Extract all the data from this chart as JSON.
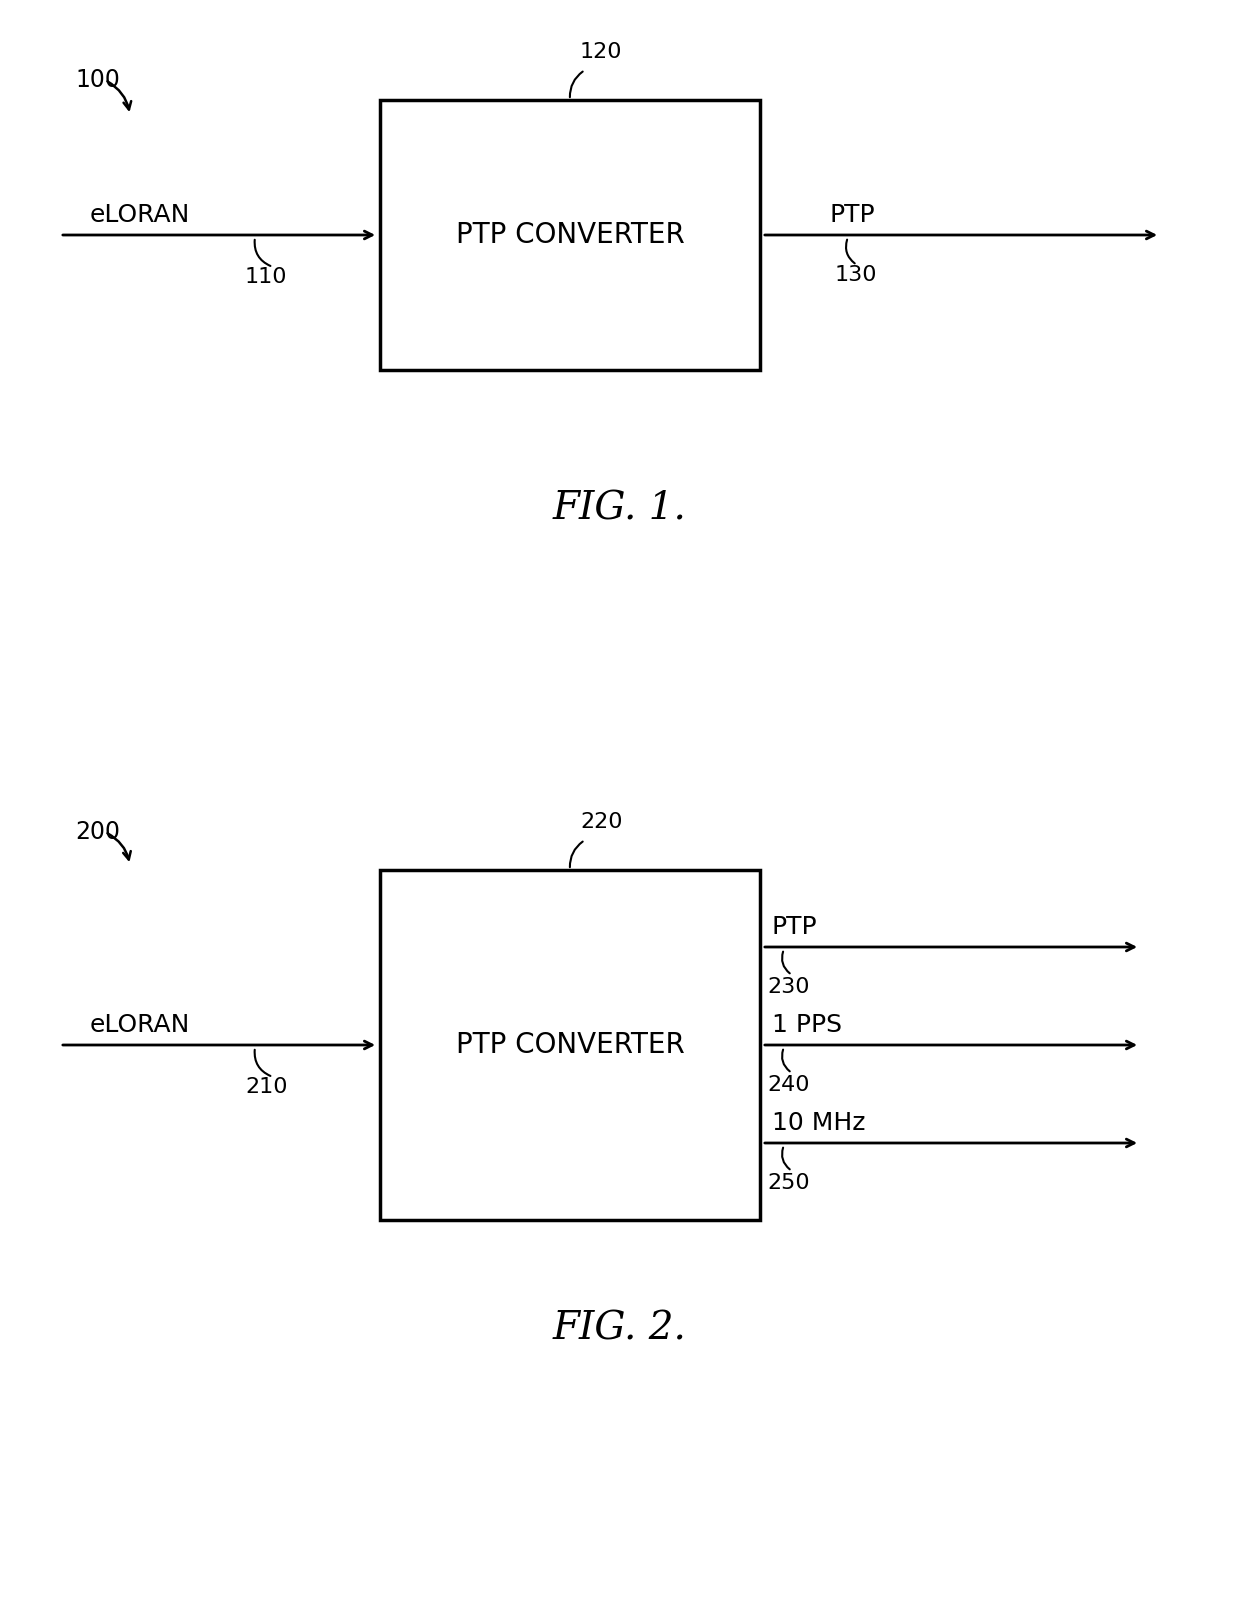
{
  "bg_color": "#ffffff",
  "text_color": "#000000",
  "line_color": "#000000",
  "box_edge_color": "#000000",
  "box_face_color": "#ffffff",
  "fig1": {
    "diagram_label": "100",
    "box_label": "120",
    "box_text": "PTP CONVERTER",
    "input_label": "eLORAN",
    "input_ref": "110",
    "output_label": "PTP",
    "output_ref": "130",
    "caption": "FIG. 1."
  },
  "fig2": {
    "diagram_label": "200",
    "box_label": "220",
    "box_text": "PTP CONVERTER",
    "input_label": "eLORAN",
    "input_ref": "210",
    "out1_label": "PTP",
    "out1_ref": "230",
    "out2_label": "1 PPS",
    "out2_ref": "240",
    "out3_label": "10 MHz",
    "out3_ref": "250",
    "caption": "FIG. 2."
  }
}
